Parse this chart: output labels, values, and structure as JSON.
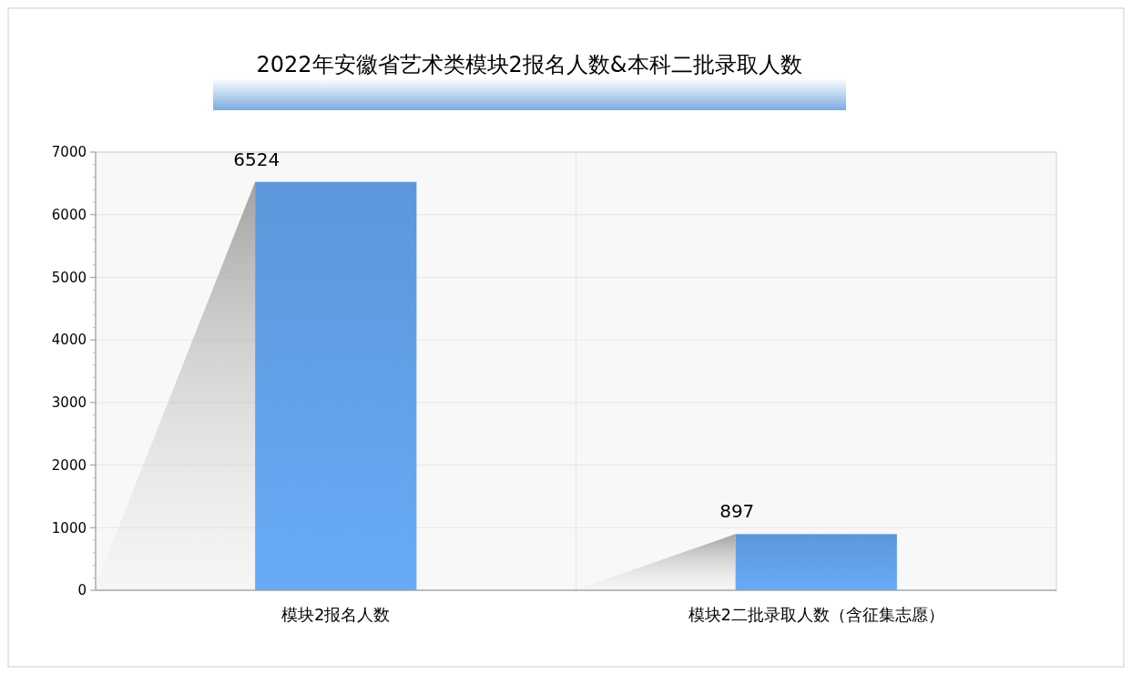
{
  "chart_data": {
    "type": "bar",
    "title": "2022年安徽省艺术类模块2报名人数&本科二批录取人数",
    "categories": [
      "模块2报名人数",
      "模块2二批录取人数（含征集志愿）"
    ],
    "values": [
      6524,
      897
    ],
    "color": "#5b97da",
    "ylim": [
      0,
      7000
    ],
    "yticks": [
      0,
      1000,
      2000,
      3000,
      4000,
      5000,
      6000,
      7000
    ],
    "grid": true,
    "data_labels": true
  }
}
